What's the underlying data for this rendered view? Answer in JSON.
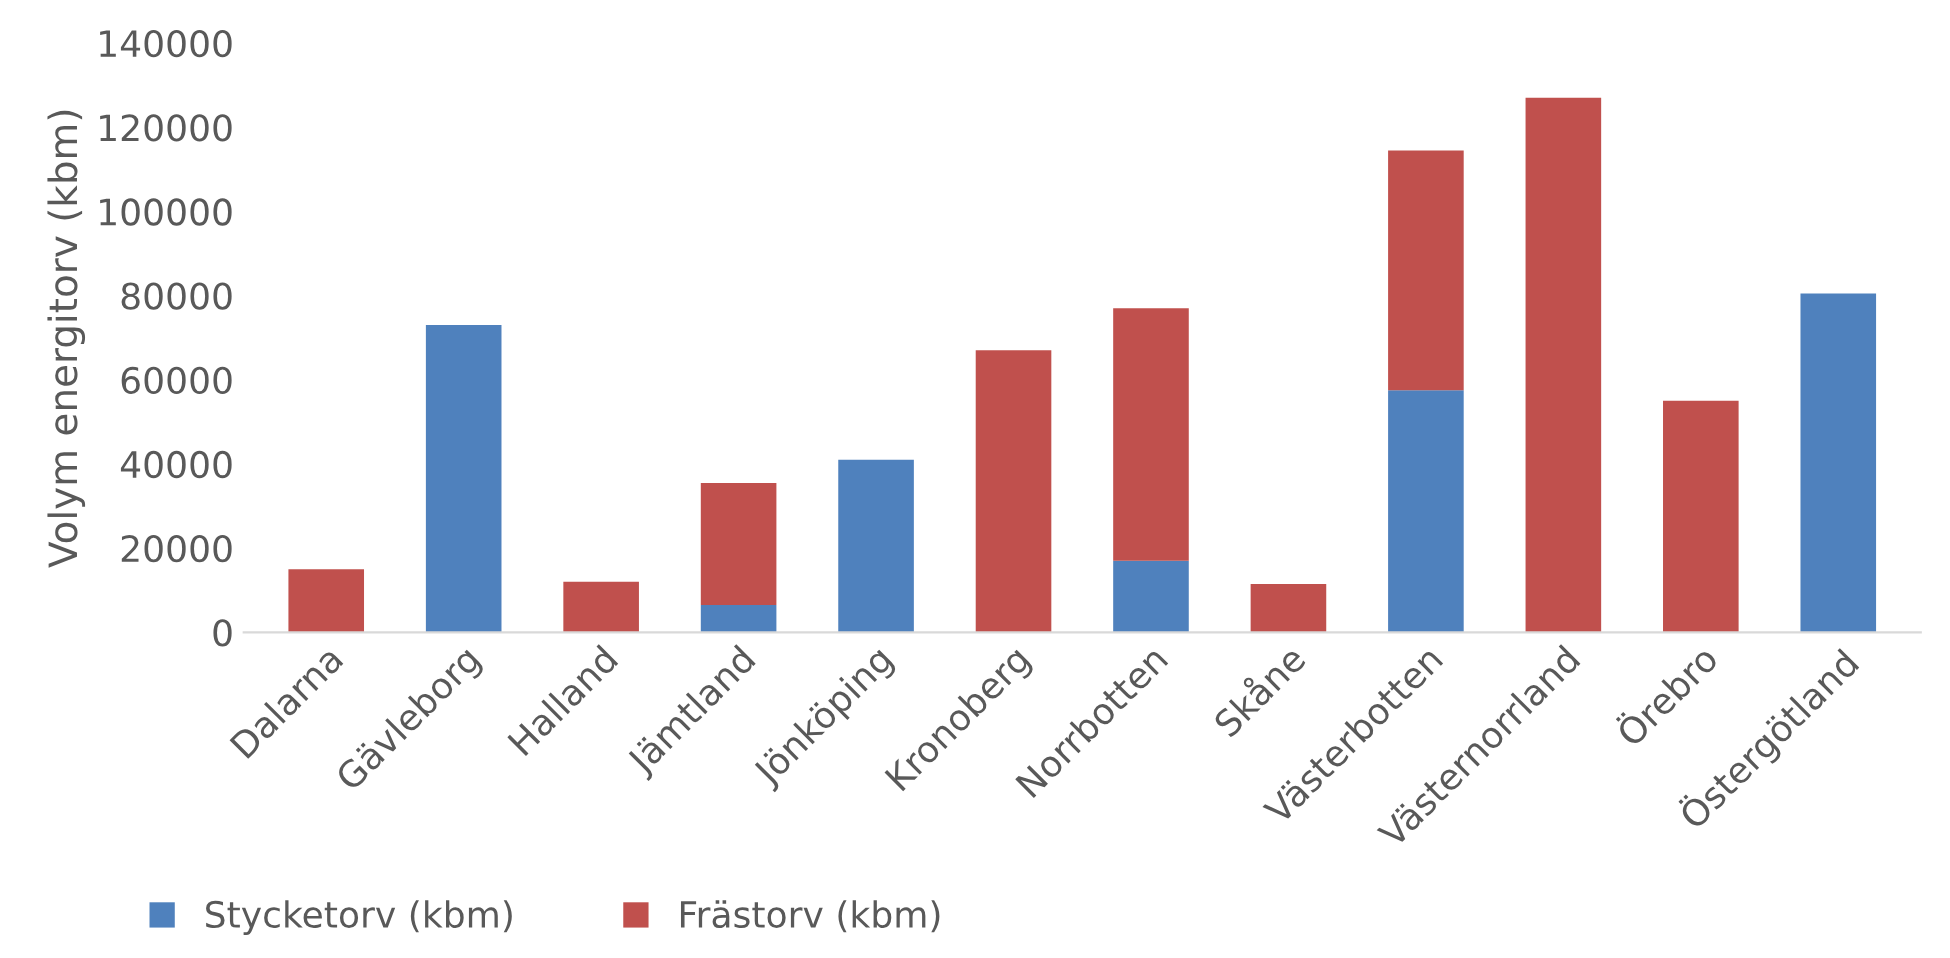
{
  "chart_data": {
    "type": "bar",
    "stacked": true,
    "ylabel": "Volym energitorv (kbm)",
    "categories": [
      "Dalarna",
      "Gävleborg",
      "Halland",
      "Jämtland",
      "Jönköping",
      "Kronoberg",
      "Norrbotten",
      "Skåne",
      "Västerbotten",
      "Västernorrland",
      "Örebro",
      "Östergötland"
    ],
    "series": [
      {
        "name": "Stycketorv (kbm)",
        "color": "#4f81bd",
        "values": [
          null,
          73000,
          null,
          6500,
          41000,
          null,
          17000,
          null,
          57500,
          null,
          null,
          80500
        ]
      },
      {
        "name": "Frästorv (kbm)",
        "color": "#c0504d",
        "values": [
          15000,
          null,
          12000,
          29000,
          null,
          67000,
          60000,
          11500,
          57000,
          127000,
          55000,
          null
        ]
      }
    ],
    "ylim": [
      0,
      140000
    ],
    "yticks": [
      0,
      20000,
      40000,
      60000,
      80000,
      100000,
      120000,
      140000
    ],
    "grid": false,
    "legend": "bottom left"
  }
}
